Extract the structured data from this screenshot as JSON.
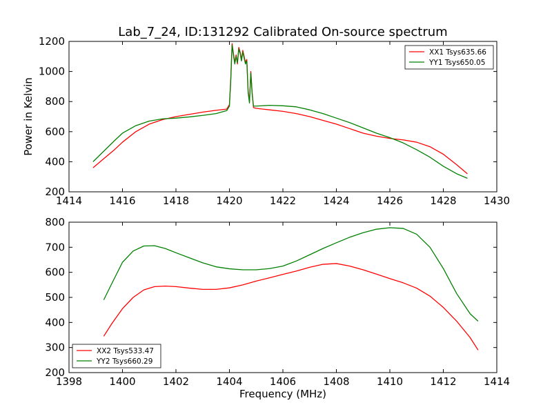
{
  "chart_data": [
    {
      "type": "line",
      "title": "Lab_7_24, ID:131292 Calibrated On-source spectrum",
      "xlabel": "",
      "ylabel": "Power in Kelvin",
      "xlim": [
        1414,
        1430
      ],
      "ylim": [
        200,
        1200
      ],
      "xticks": [
        "1414",
        "1416",
        "1418",
        "1420",
        "1422",
        "1424",
        "1426",
        "1428",
        "1430"
      ],
      "yticks": [
        "200",
        "400",
        "600",
        "800",
        "1000",
        "1200"
      ],
      "legend_position": "top-right",
      "series": [
        {
          "name": "XX1 Tsys635.66",
          "color": "#ff0000",
          "x": [
            1414.9,
            1415.3,
            1415.7,
            1416.0,
            1416.5,
            1417.0,
            1417.5,
            1418.0,
            1418.5,
            1419.0,
            1419.5,
            1419.9,
            1420.0,
            1420.05,
            1420.1,
            1420.15,
            1420.2,
            1420.25,
            1420.3,
            1420.35,
            1420.4,
            1420.45,
            1420.5,
            1420.55,
            1420.6,
            1420.65,
            1420.7,
            1420.75,
            1420.8,
            1420.85,
            1420.9,
            1421.0,
            1421.5,
            1422.0,
            1422.5,
            1423.0,
            1423.5,
            1424.0,
            1424.5,
            1425.0,
            1425.5,
            1426.0,
            1426.5,
            1427.0,
            1427.5,
            1428.0,
            1428.5,
            1428.9
          ],
          "y": [
            360,
            420,
            480,
            530,
            600,
            650,
            680,
            700,
            715,
            730,
            742,
            750,
            780,
            950,
            1185,
            1120,
            1060,
            1110,
            1050,
            1160,
            1130,
            1080,
            1140,
            1100,
            1060,
            1080,
            870,
            800,
            1000,
            860,
            760,
            755,
            745,
            735,
            720,
            700,
            675,
            650,
            620,
            590,
            570,
            555,
            545,
            530,
            500,
            450,
            380,
            320
          ]
        },
        {
          "name": "YY1 Tsys650.05",
          "color": "#008000",
          "x": [
            1414.9,
            1415.3,
            1415.7,
            1416.0,
            1416.5,
            1417.0,
            1417.5,
            1418.0,
            1418.5,
            1419.0,
            1419.5,
            1419.9,
            1420.0,
            1420.05,
            1420.1,
            1420.15,
            1420.2,
            1420.25,
            1420.3,
            1420.35,
            1420.4,
            1420.45,
            1420.5,
            1420.55,
            1420.6,
            1420.65,
            1420.7,
            1420.75,
            1420.8,
            1420.85,
            1420.9,
            1421.0,
            1421.5,
            1422.0,
            1422.5,
            1423.0,
            1423.5,
            1424.0,
            1424.5,
            1425.0,
            1425.5,
            1426.0,
            1426.5,
            1427.0,
            1427.5,
            1428.0,
            1428.5,
            1428.9
          ],
          "y": [
            400,
            470,
            540,
            590,
            640,
            670,
            685,
            690,
            698,
            708,
            720,
            740,
            770,
            940,
            1175,
            1110,
            1050,
            1100,
            1060,
            1150,
            1120,
            1070,
            1130,
            1090,
            1050,
            1070,
            860,
            790,
            990,
            850,
            770,
            770,
            775,
            772,
            765,
            745,
            720,
            690,
            660,
            625,
            590,
            560,
            525,
            480,
            430,
            370,
            320,
            290
          ]
        }
      ]
    },
    {
      "type": "line",
      "title": "",
      "xlabel": "Frequency (MHz)",
      "ylabel": "",
      "xlim": [
        1398,
        1414
      ],
      "ylim": [
        200,
        800
      ],
      "xticks": [
        "1398",
        "1400",
        "1402",
        "1404",
        "1406",
        "1408",
        "1410",
        "1412",
        "1414"
      ],
      "yticks": [
        "200",
        "300",
        "400",
        "500",
        "600",
        "700",
        "800"
      ],
      "legend_position": "bottom-left",
      "series": [
        {
          "name": "XX2 Tsys533.47",
          "color": "#ff0000",
          "x": [
            1399.3,
            1399.6,
            1400.0,
            1400.4,
            1400.8,
            1401.2,
            1401.6,
            1402.0,
            1402.5,
            1403.0,
            1403.5,
            1404.0,
            1404.5,
            1405.0,
            1405.5,
            1406.0,
            1406.5,
            1407.0,
            1407.5,
            1408.0,
            1408.5,
            1409.0,
            1409.5,
            1410.0,
            1410.5,
            1411.0,
            1411.5,
            1412.0,
            1412.5,
            1413.0,
            1413.3
          ],
          "y": [
            345,
            395,
            455,
            500,
            530,
            543,
            545,
            543,
            537,
            532,
            532,
            538,
            550,
            565,
            578,
            592,
            605,
            620,
            632,
            635,
            625,
            610,
            593,
            575,
            558,
            537,
            505,
            460,
            405,
            340,
            290
          ]
        },
        {
          "name": "YY2 Tsys660.29",
          "color": "#008000",
          "x": [
            1399.3,
            1399.6,
            1400.0,
            1400.4,
            1400.8,
            1401.2,
            1401.6,
            1402.0,
            1402.5,
            1403.0,
            1403.5,
            1404.0,
            1404.5,
            1405.0,
            1405.5,
            1406.0,
            1406.5,
            1407.0,
            1407.5,
            1408.0,
            1408.5,
            1409.0,
            1409.5,
            1410.0,
            1410.5,
            1411.0,
            1411.5,
            1412.0,
            1412.5,
            1413.0,
            1413.3
          ],
          "y": [
            490,
            555,
            640,
            685,
            705,
            706,
            695,
            678,
            658,
            638,
            622,
            614,
            610,
            610,
            615,
            625,
            645,
            670,
            695,
            718,
            740,
            758,
            772,
            778,
            775,
            752,
            700,
            615,
            515,
            435,
            405
          ]
        }
      ]
    }
  ]
}
